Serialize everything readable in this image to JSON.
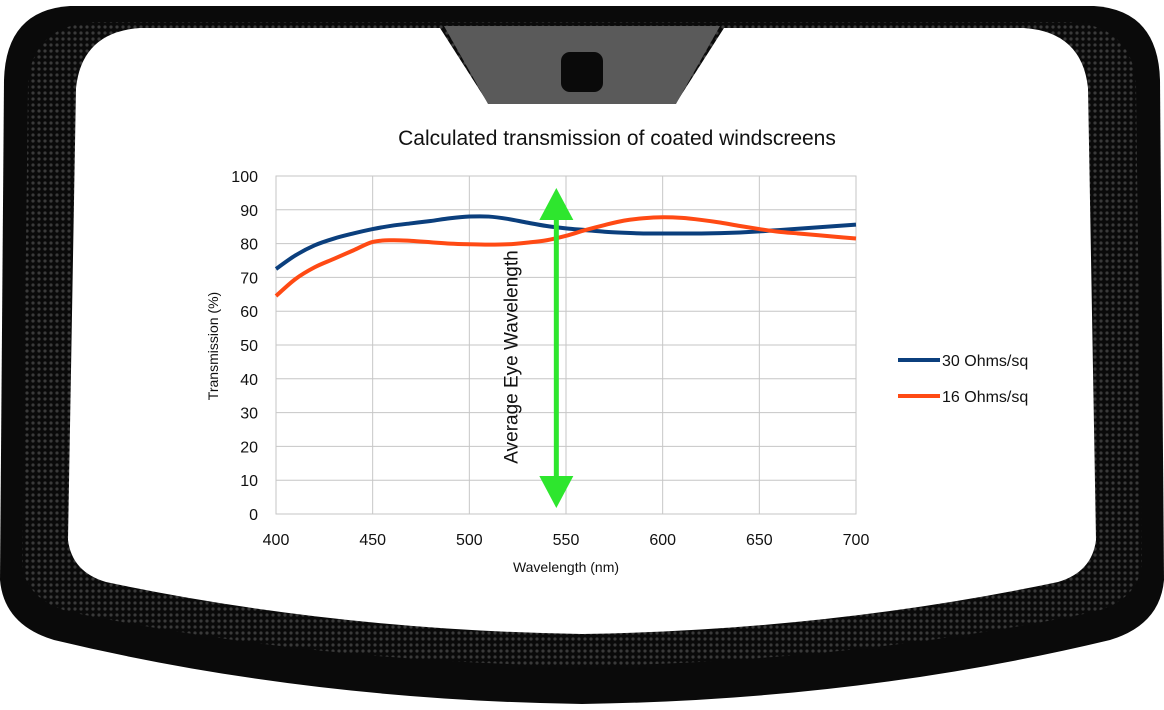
{
  "colors": {
    "frame": "#0a0a0a",
    "frit": "#5a5a5a",
    "glass": "#ffffff",
    "series_30": "#0b3f7d",
    "series_16": "#ff4a14",
    "arrow": "#2ee62e",
    "grid": "#c6c6c6"
  },
  "chart_data": {
    "type": "line",
    "title": "Calculated transmission of coated windscreens",
    "xlabel": "Wavelength (nm)",
    "ylabel": "Transmission (%)",
    "xlim": [
      400,
      700
    ],
    "ylim": [
      0,
      100
    ],
    "x_ticks": [
      400,
      450,
      500,
      550,
      600,
      650,
      700
    ],
    "y_ticks": [
      0,
      10,
      20,
      30,
      40,
      50,
      60,
      70,
      80,
      90,
      100
    ],
    "grid": true,
    "legend_position": "right",
    "series": [
      {
        "name": "30 Ohms/sq",
        "color": "#0b3f7d",
        "x": [
          400,
          410,
          420,
          430,
          440,
          450,
          460,
          470,
          480,
          490,
          500,
          510,
          520,
          530,
          540,
          550,
          560,
          570,
          580,
          590,
          600,
          610,
          620,
          630,
          640,
          650,
          660,
          670,
          680,
          690,
          700
        ],
        "y": [
          72.5,
          76.5,
          79.5,
          81.5,
          83,
          84.3,
          85.3,
          86,
          86.7,
          87.5,
          88,
          88,
          87.3,
          86.2,
          85.2,
          84.5,
          84,
          83.5,
          83.2,
          83,
          83,
          83,
          83,
          83.1,
          83.3,
          83.6,
          84,
          84.4,
          84.8,
          85.2,
          85.6
        ]
      },
      {
        "name": "16 Ohms/sq",
        "color": "#ff4a14",
        "x": [
          400,
          410,
          420,
          430,
          440,
          450,
          460,
          470,
          480,
          490,
          500,
          510,
          520,
          530,
          540,
          550,
          560,
          570,
          580,
          590,
          600,
          610,
          620,
          630,
          640,
          650,
          660,
          670,
          680,
          690,
          700
        ],
        "y": [
          64.5,
          69.5,
          73,
          75.5,
          78,
          80.5,
          81,
          80.8,
          80.4,
          80,
          79.8,
          79.7,
          79.8,
          80.3,
          81,
          82.3,
          84,
          85.5,
          86.8,
          87.5,
          87.8,
          87.6,
          87,
          86.2,
          85.2,
          84.3,
          83.5,
          83,
          82.5,
          82,
          81.5
        ]
      }
    ],
    "annotation": {
      "text": "Average Eye Wavelength",
      "x": 545,
      "y_from": 0,
      "y_to": 100
    }
  }
}
